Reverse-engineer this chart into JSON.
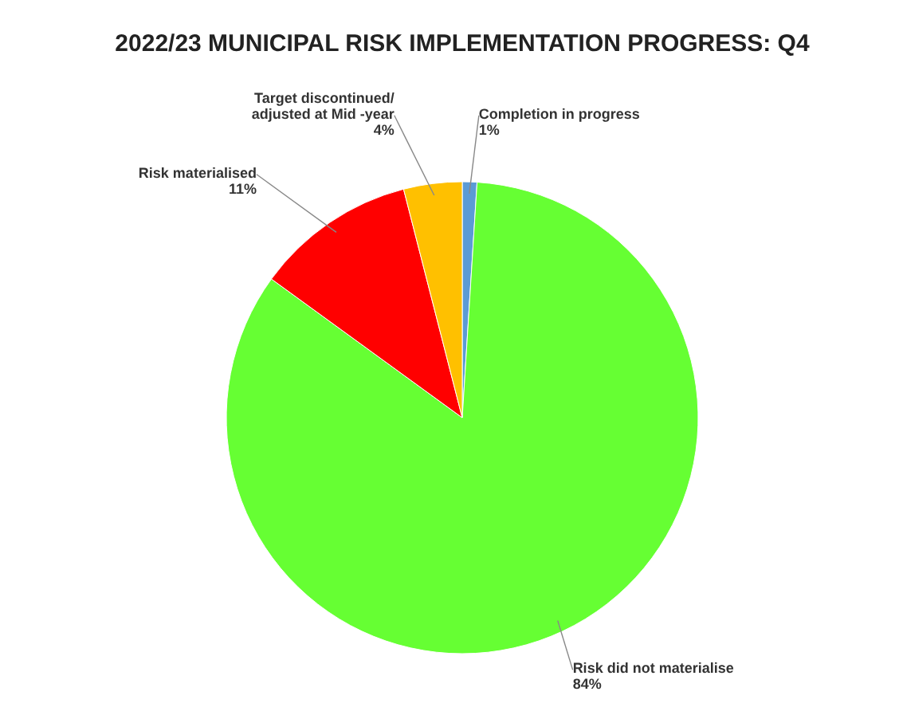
{
  "chart_data": {
    "type": "pie",
    "title": "2022/23 MUNICIPAL RISK IMPLEMENTATION PROGRESS: Q4",
    "categories": [
      "Completion in progress",
      "Risk did not materialise",
      "Risk materialised",
      "Target discontinued/ adjusted at Mid -year"
    ],
    "values": [
      1,
      84,
      11,
      4
    ],
    "colors": [
      "#5b9bd5",
      "#66ff33",
      "#ff0000",
      "#ffc000"
    ],
    "value_labels": [
      "1%",
      "84%",
      "11%",
      "4%"
    ]
  }
}
